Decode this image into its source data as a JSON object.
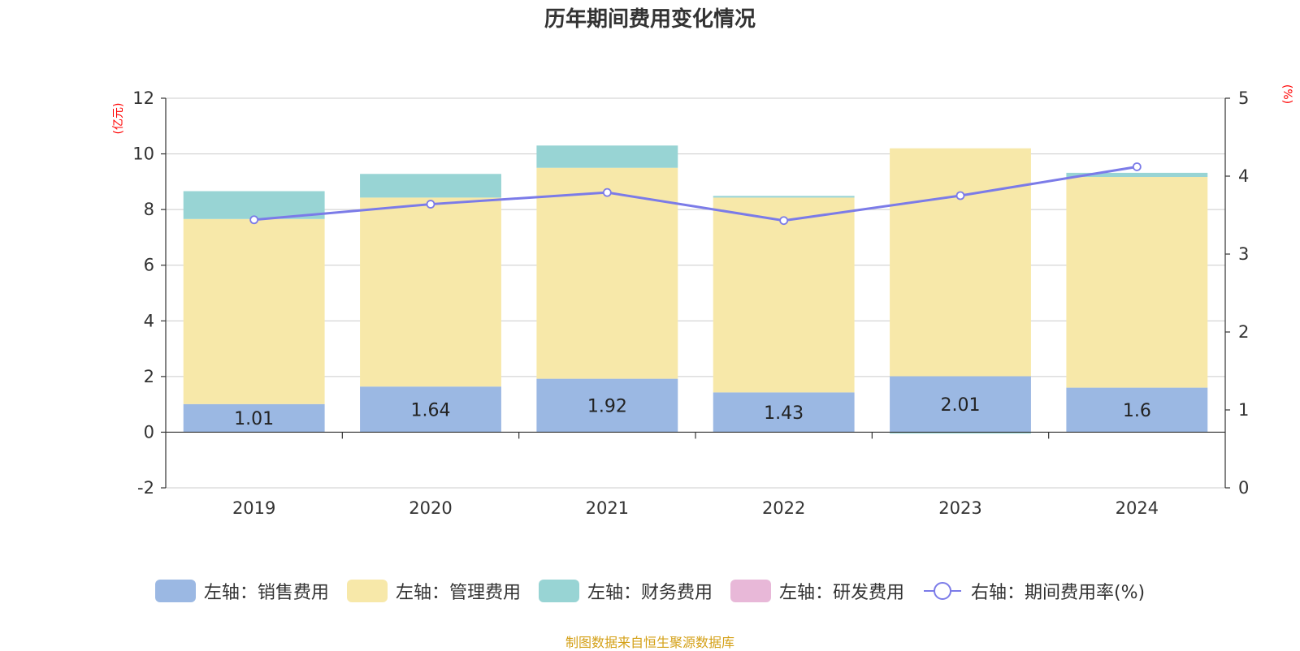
{
  "chart_data": {
    "type": "bar",
    "title": "历年期间费用变化情况",
    "categories": [
      "2019",
      "2020",
      "2021",
      "2022",
      "2023",
      "2024"
    ],
    "series": [
      {
        "name": "左轴：销售费用",
        "axis": "left",
        "color": "#9bb8e3",
        "values": [
          1.01,
          1.64,
          1.92,
          1.43,
          2.01,
          1.6
        ],
        "labels": [
          "1.01",
          "1.64",
          "1.92",
          "1.43",
          "2.01",
          "1.6"
        ]
      },
      {
        "name": "左轴：管理费用",
        "axis": "left",
        "color": "#f7e8a9",
        "values": [
          6.65,
          6.79,
          7.58,
          7.0,
          8.19,
          7.57
        ]
      },
      {
        "name": "左轴：财务费用",
        "axis": "left",
        "color": "#98d4d4",
        "values": [
          1.0,
          0.85,
          0.8,
          0.06,
          -0.05,
          0.15
        ]
      },
      {
        "name": "左轴：研发费用",
        "axis": "left",
        "color": "#e8b8d8",
        "values": [
          0,
          0,
          0,
          0,
          0,
          0
        ]
      },
      {
        "name": "右轴：期间费用率(%)",
        "axis": "right",
        "type": "line",
        "color": "#7b7be8",
        "values": [
          3.44,
          3.64,
          3.79,
          3.43,
          3.75,
          4.12
        ]
      }
    ],
    "left_axis": {
      "unit": "(亿元)",
      "ylim": [
        -2,
        12
      ],
      "ticks": [
        -2,
        0,
        2,
        4,
        6,
        8,
        10,
        12
      ]
    },
    "right_axis": {
      "unit": "(%)",
      "ylim": [
        0,
        5
      ],
      "ticks": [
        0,
        1,
        2,
        3,
        4,
        5
      ]
    },
    "grid": true,
    "legend_position": "bottom",
    "colors": {
      "unit_label": "#ff0000",
      "source": "#d4a017",
      "grid": "#cccccc",
      "axis": "#333333"
    }
  },
  "footer": {
    "source": "制图数据来自恒生聚源数据库"
  }
}
